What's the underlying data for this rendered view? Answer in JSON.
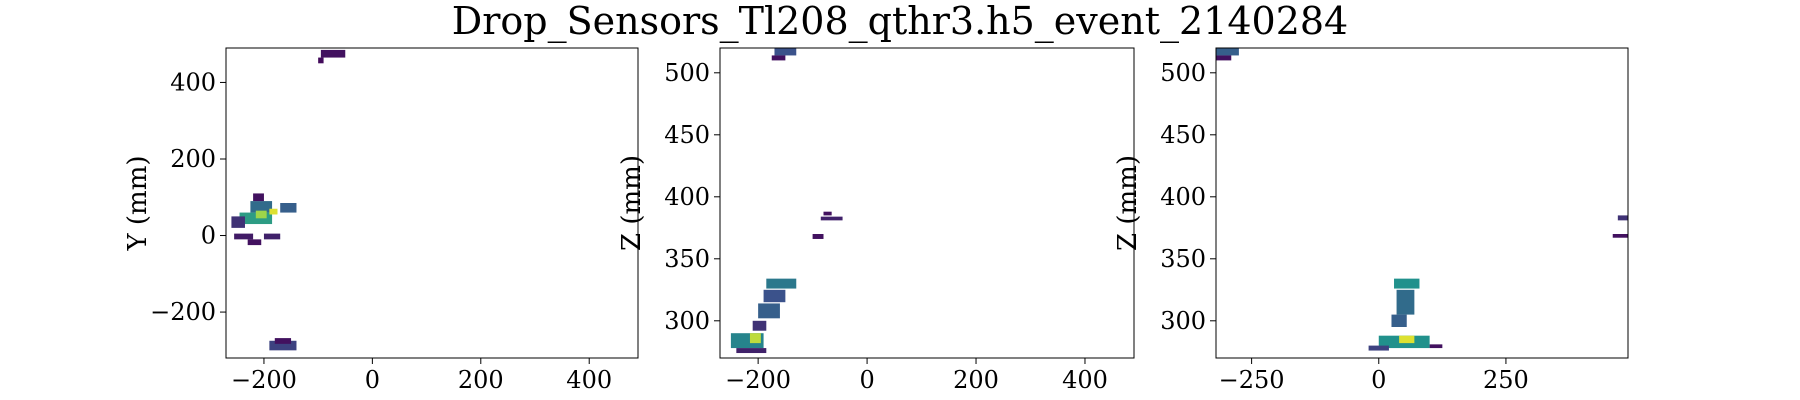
{
  "figure": {
    "title": "Drop_Sensors_Tl208_qthr3.h5_event_2140284"
  },
  "chart_data": [
    {
      "type": "heatmap",
      "panel": "xy",
      "xlabel": "",
      "ylabel": "Y (mm)",
      "xlim": [
        -270,
        490
      ],
      "ylim": [
        -320,
        490
      ],
      "xticks": [
        -200,
        0,
        200,
        400
      ],
      "yticks": [
        -200,
        0,
        200,
        400
      ],
      "xtick_labels": [
        "−200",
        "0",
        "200",
        "400"
      ],
      "ytick_labels": [
        "−200",
        "0",
        "200",
        "400"
      ],
      "colormap": "viridis",
      "cells": [
        {
          "x": -225,
          "y": 60,
          "w": 40,
          "h": 30,
          "v": 0.35
        },
        {
          "x": -245,
          "y": 30,
          "w": 60,
          "h": 30,
          "v": 0.55
        },
        {
          "x": -215,
          "y": 45,
          "w": 20,
          "h": 20,
          "v": 0.85
        },
        {
          "x": -190,
          "y": 55,
          "w": 15,
          "h": 15,
          "v": 0.95
        },
        {
          "x": -260,
          "y": 20,
          "w": 25,
          "h": 30,
          "v": 0.15
        },
        {
          "x": -170,
          "y": 60,
          "w": 30,
          "h": 25,
          "v": 0.3
        },
        {
          "x": -255,
          "y": -10,
          "w": 35,
          "h": 15,
          "v": 0.08
        },
        {
          "x": -230,
          "y": -25,
          "w": 25,
          "h": 15,
          "v": 0.05
        },
        {
          "x": -200,
          "y": -10,
          "w": 30,
          "h": 15,
          "v": 0.1
        },
        {
          "x": -220,
          "y": 90,
          "w": 20,
          "h": 20,
          "v": 0.05
        },
        {
          "x": -95,
          "y": 465,
          "w": 45,
          "h": 20,
          "v": 0.05
        },
        {
          "x": -100,
          "y": 450,
          "w": 10,
          "h": 15,
          "v": 0.03
        },
        {
          "x": -190,
          "y": -300,
          "w": 50,
          "h": 25,
          "v": 0.2
        },
        {
          "x": -180,
          "y": -283,
          "w": 30,
          "h": 15,
          "v": 0.05
        }
      ]
    },
    {
      "type": "heatmap",
      "panel": "xz",
      "xlabel": "",
      "ylabel": "Z (mm)",
      "xlim": [
        -270,
        490
      ],
      "ylim": [
        270,
        520
      ],
      "xticks": [
        -200,
        0,
        200,
        400
      ],
      "yticks": [
        300,
        350,
        400,
        450,
        500
      ],
      "xtick_labels": [
        "−200",
        "0",
        "200",
        "400"
      ],
      "ytick_labels": [
        "300",
        "350",
        "400",
        "450",
        "500"
      ],
      "colormap": "viridis",
      "cells": [
        {
          "x": -170,
          "y": 514,
          "w": 40,
          "h": 6,
          "v": 0.25
        },
        {
          "x": -175,
          "y": 510,
          "w": 25,
          "h": 4,
          "v": 0.05
        },
        {
          "x": -85,
          "y": 381,
          "w": 40,
          "h": 3,
          "v": 0.1
        },
        {
          "x": -80,
          "y": 385,
          "w": 15,
          "h": 3,
          "v": 0.05
        },
        {
          "x": -100,
          "y": 366,
          "w": 20,
          "h": 4,
          "v": 0.05
        },
        {
          "x": -185,
          "y": 326,
          "w": 55,
          "h": 8,
          "v": 0.4
        },
        {
          "x": -190,
          "y": 315,
          "w": 40,
          "h": 10,
          "v": 0.25
        },
        {
          "x": -200,
          "y": 302,
          "w": 40,
          "h": 12,
          "v": 0.3
        },
        {
          "x": -210,
          "y": 292,
          "w": 25,
          "h": 8,
          "v": 0.15
        },
        {
          "x": -250,
          "y": 278,
          "w": 60,
          "h": 12,
          "v": 0.45
        },
        {
          "x": -215,
          "y": 282,
          "w": 20,
          "h": 8,
          "v": 0.9
        },
        {
          "x": -240,
          "y": 274,
          "w": 55,
          "h": 4,
          "v": 0.1
        }
      ]
    },
    {
      "type": "heatmap",
      "panel": "yz",
      "xlabel": "",
      "ylabel": "Z (mm)",
      "xlim": [
        -320,
        490
      ],
      "ylim": [
        270,
        520
      ],
      "xticks": [
        -250,
        0,
        250
      ],
      "yticks": [
        300,
        350,
        400,
        450,
        500
      ],
      "xtick_labels": [
        "−250",
        "0",
        "250"
      ],
      "ytick_labels": [
        "300",
        "350",
        "400",
        "450",
        "500"
      ],
      "colormap": "viridis",
      "cells": [
        {
          "x": -320,
          "y": 514,
          "w": 45,
          "h": 6,
          "v": 0.3
        },
        {
          "x": -320,
          "y": 510,
          "w": 30,
          "h": 4,
          "v": 0.05
        },
        {
          "x": 470,
          "y": 381,
          "w": 20,
          "h": 4,
          "v": 0.15
        },
        {
          "x": 460,
          "y": 367,
          "w": 30,
          "h": 3,
          "v": 0.05
        },
        {
          "x": 30,
          "y": 326,
          "w": 50,
          "h": 8,
          "v": 0.5
        },
        {
          "x": 35,
          "y": 305,
          "w": 35,
          "h": 20,
          "v": 0.35
        },
        {
          "x": 25,
          "y": 295,
          "w": 30,
          "h": 10,
          "v": 0.3
        },
        {
          "x": 0,
          "y": 278,
          "w": 100,
          "h": 10,
          "v": 0.5
        },
        {
          "x": 40,
          "y": 282,
          "w": 30,
          "h": 6,
          "v": 0.95
        },
        {
          "x": -20,
          "y": 276,
          "w": 40,
          "h": 4,
          "v": 0.2
        },
        {
          "x": 100,
          "y": 278,
          "w": 25,
          "h": 3,
          "v": 0.05
        }
      ]
    }
  ]
}
